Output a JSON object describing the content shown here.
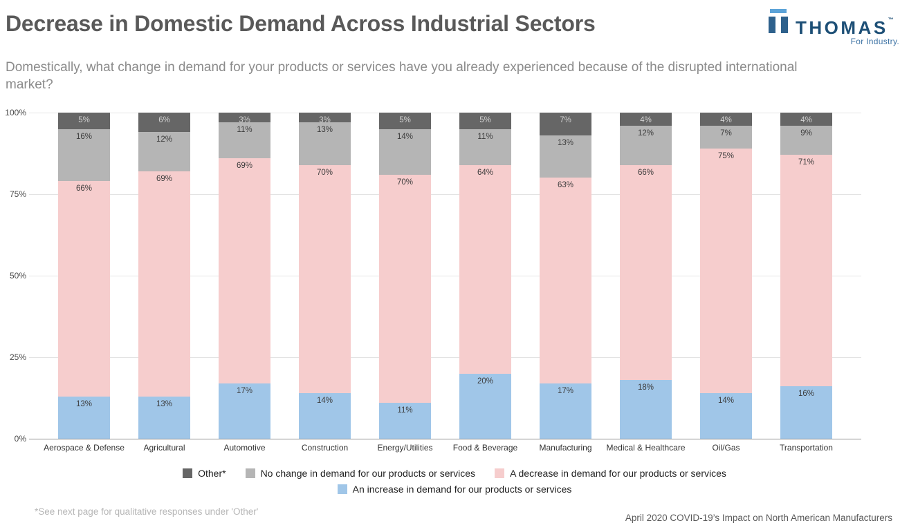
{
  "header": {
    "title": "Decrease in Domestic Demand Across Industrial Sectors",
    "subtitle": "Domestically, what change in demand for your products or services have you already experienced because of the disrupted international market?"
  },
  "logo": {
    "brand": "THOMAS",
    "trademark": "™",
    "tagline": "For Industry.",
    "brand_color": "#1d4f76",
    "accent_color": "#5ca3d8"
  },
  "chart_data": {
    "type": "bar",
    "stacked": true,
    "value_suffix": "%",
    "ylim": [
      0,
      100
    ],
    "y_ticks": [
      "100%",
      "75%",
      "50%",
      "25%",
      "0%"
    ],
    "grid": true,
    "legend_position": "bottom",
    "categories": [
      "Aerospace & Defense",
      "Agricultural",
      "Automotive",
      "Construction",
      "Energy/Utilities",
      "Food & Beverage",
      "Manufacturing",
      "Medical & Healthcare",
      "Oil/Gas",
      "Transportation"
    ],
    "series": [
      {
        "name": "Other*",
        "color": "#666666",
        "label_color": "#d2d2d2",
        "values": [
          5,
          6,
          3,
          3,
          5,
          5,
          7,
          4,
          4,
          4
        ]
      },
      {
        "name": "No change in demand for our products or services",
        "color": "#b5b5b5",
        "label_color": "#3c3c3c",
        "values": [
          16,
          12,
          11,
          13,
          14,
          11,
          13,
          12,
          7,
          9
        ]
      },
      {
        "name": "A decrease in demand for our products or services",
        "color": "#f6cdcd",
        "label_color": "#3c3c3c",
        "values": [
          66,
          69,
          69,
          70,
          70,
          64,
          63,
          66,
          75,
          71
        ]
      },
      {
        "name": "An increase in demand for our products or services",
        "color": "#a0c6e8",
        "label_color": "#3c3c3c",
        "values": [
          13,
          13,
          17,
          14,
          11,
          20,
          17,
          18,
          14,
          16
        ]
      }
    ]
  },
  "footer": {
    "note_left": "*See next page for qualitative responses under 'Other'",
    "note_right": "April 2020 COVID-19’s Impact on North American Manufacturers"
  }
}
